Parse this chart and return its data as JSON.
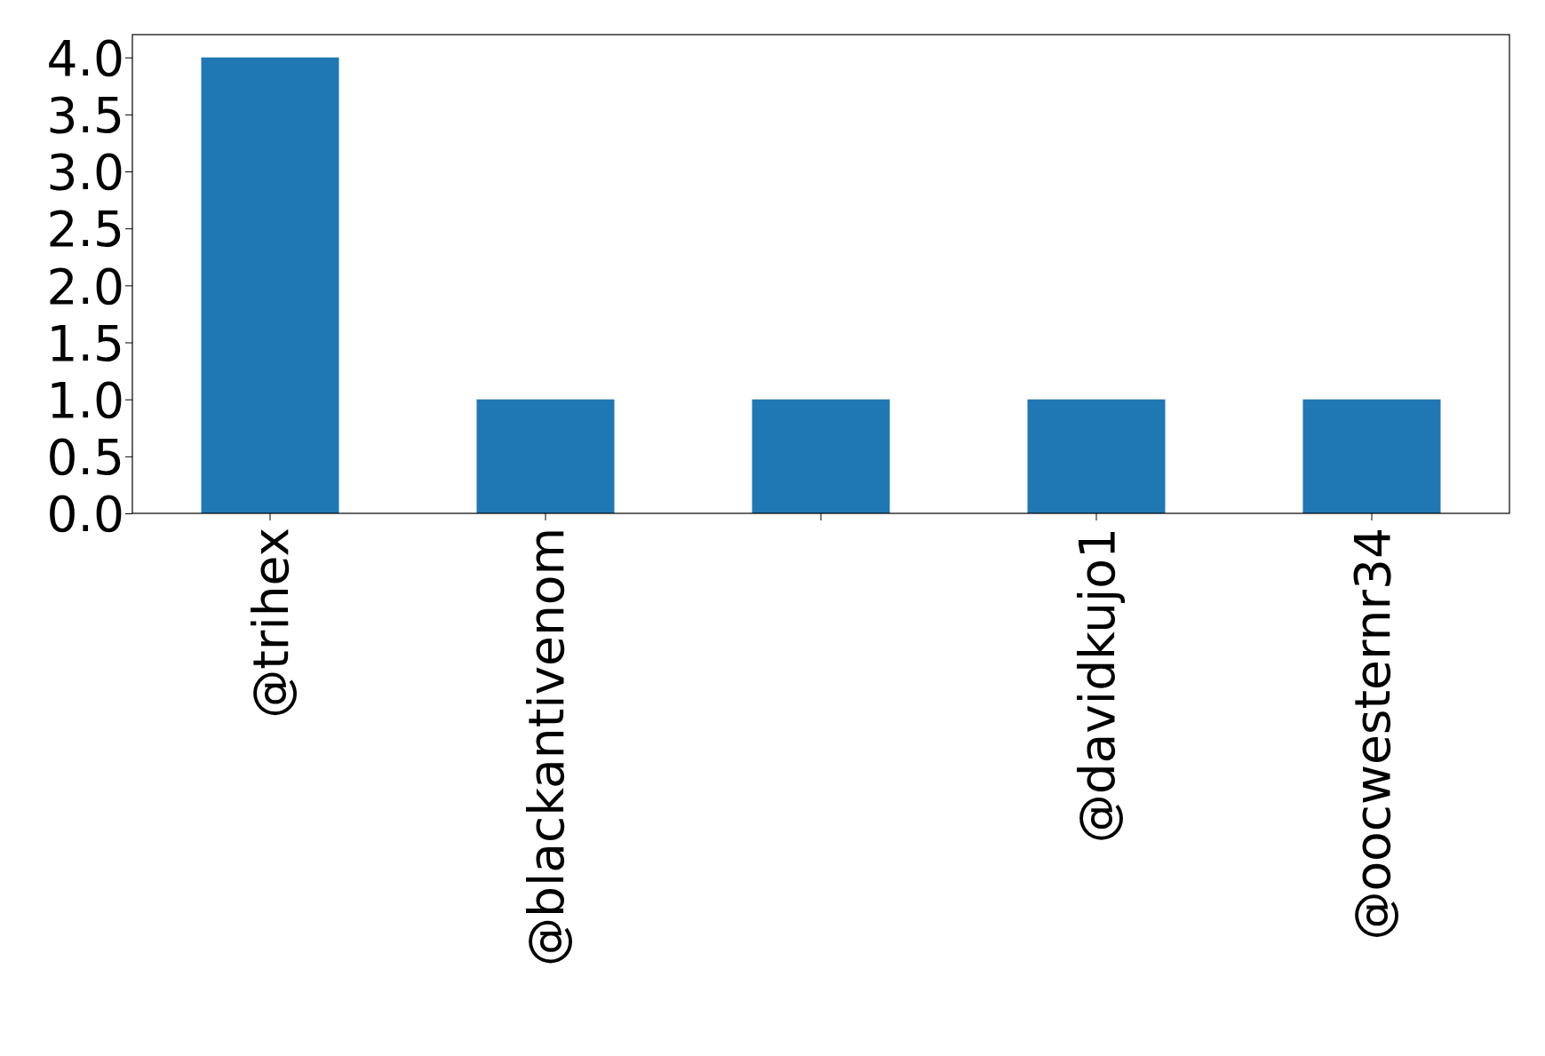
{
  "chart_data": {
    "type": "bar",
    "categories": [
      "@trihex",
      "@blackantivenom",
      null,
      "@davidkujo1",
      "@oocwesternr34"
    ],
    "values": [
      4,
      1,
      1,
      1,
      1
    ],
    "color": "#1f77b4",
    "ylim": [
      0,
      4.2
    ],
    "yticks": [
      {
        "value": 0,
        "label": "0.0"
      },
      0.5,
      {
        "value": 1,
        "label": "1.0"
      },
      1.5,
      {
        "value": 2,
        "label": "2.0"
      },
      2.5,
      {
        "value": 3,
        "label": "3.0"
      },
      3.5,
      {
        "value": 4,
        "label": "4.0"
      }
    ],
    "grid": false
  }
}
